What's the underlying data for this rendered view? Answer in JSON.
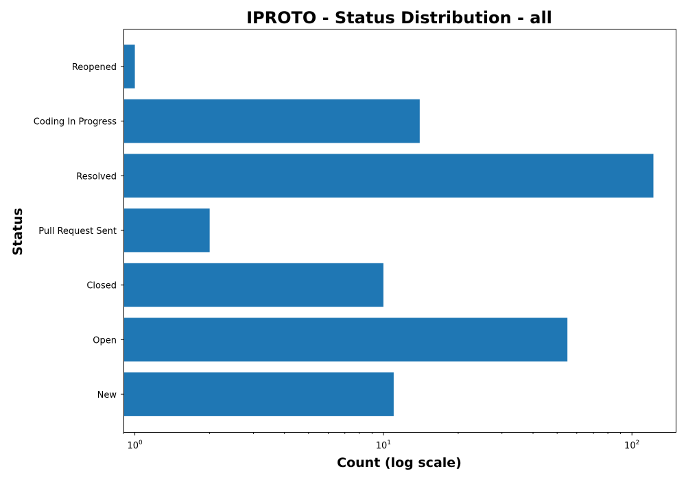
{
  "chart_data": {
    "type": "bar",
    "orientation": "horizontal",
    "title": "IPROTO - Status Distribution - all",
    "xlabel": "Count (log scale)",
    "ylabel": "Status",
    "xscale": "log",
    "xlim": [
      0.9,
      150
    ],
    "x_ticks": [
      {
        "base": "10",
        "exp": "0"
      },
      {
        "base": "10",
        "exp": "1"
      },
      {
        "base": "10",
        "exp": "2"
      }
    ],
    "categories": [
      "New",
      "Open",
      "Closed",
      "Pull Request Sent",
      "Resolved",
      "Coding In Progress",
      "Reopened"
    ],
    "values": [
      11,
      55,
      10,
      2,
      122,
      14,
      1
    ],
    "bar_color": "#1f77b4",
    "grid": false,
    "legend": "none"
  }
}
